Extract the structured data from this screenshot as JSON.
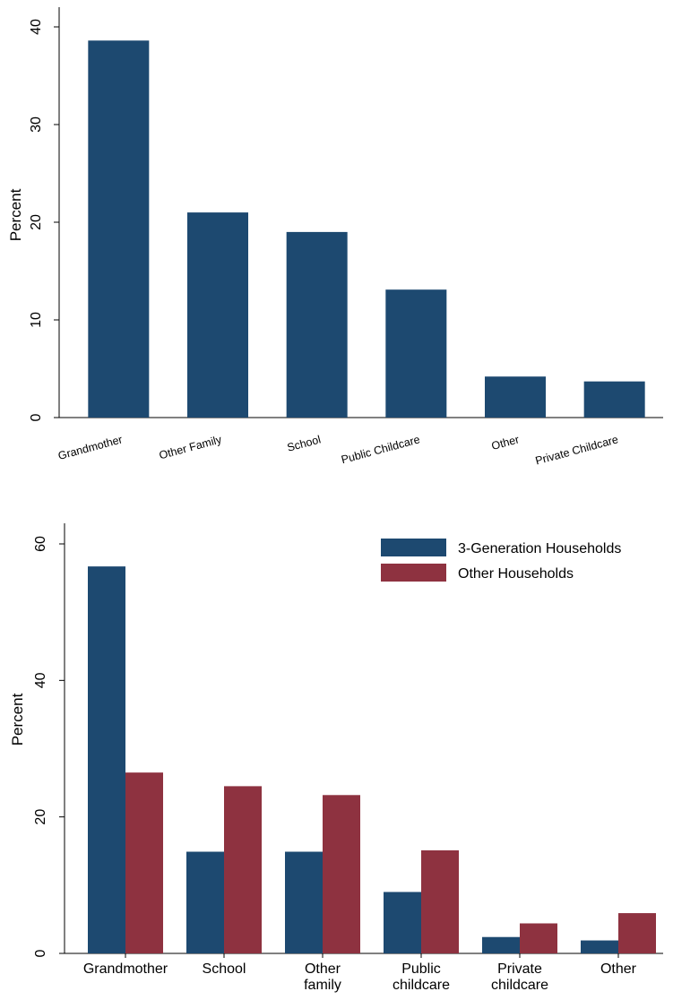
{
  "chart_data": [
    {
      "type": "bar",
      "categories": [
        "Grandmother",
        "Other Family",
        "School",
        "Public Childcare",
        "Other",
        "Private Childcare"
      ],
      "series": [
        {
          "values": [
            38.6,
            21.0,
            19.0,
            13.1,
            4.2,
            3.7
          ]
        }
      ],
      "title": "",
      "xlabel": "",
      "ylabel": "Percent",
      "ylim": [
        0,
        40
      ],
      "yticks": [
        "0",
        "10",
        "20",
        "30",
        "40"
      ],
      "colors": [
        "#1d4970"
      ],
      "grid": false,
      "legend": false
    },
    {
      "type": "bar",
      "categories": [
        [
          "Grandmother"
        ],
        [
          "School"
        ],
        [
          "Other",
          "family"
        ],
        [
          "Public",
          "childcare"
        ],
        [
          "Private",
          "childcare"
        ],
        [
          "Other"
        ]
      ],
      "series": [
        {
          "name": "3-Generation Households",
          "values": [
            56.7,
            14.9,
            14.9,
            9.0,
            2.4,
            1.9
          ]
        },
        {
          "name": "Other Households",
          "values": [
            26.5,
            24.5,
            23.2,
            15.1,
            4.4,
            5.9
          ]
        }
      ],
      "title": "",
      "xlabel": "",
      "ylabel": "Percent",
      "ylim": [
        0,
        60
      ],
      "yticks": [
        "0",
        "20",
        "40",
        "60"
      ],
      "colors": [
        "#1d4970",
        "#8e3240"
      ],
      "grid": false,
      "legend": "top-right"
    }
  ]
}
